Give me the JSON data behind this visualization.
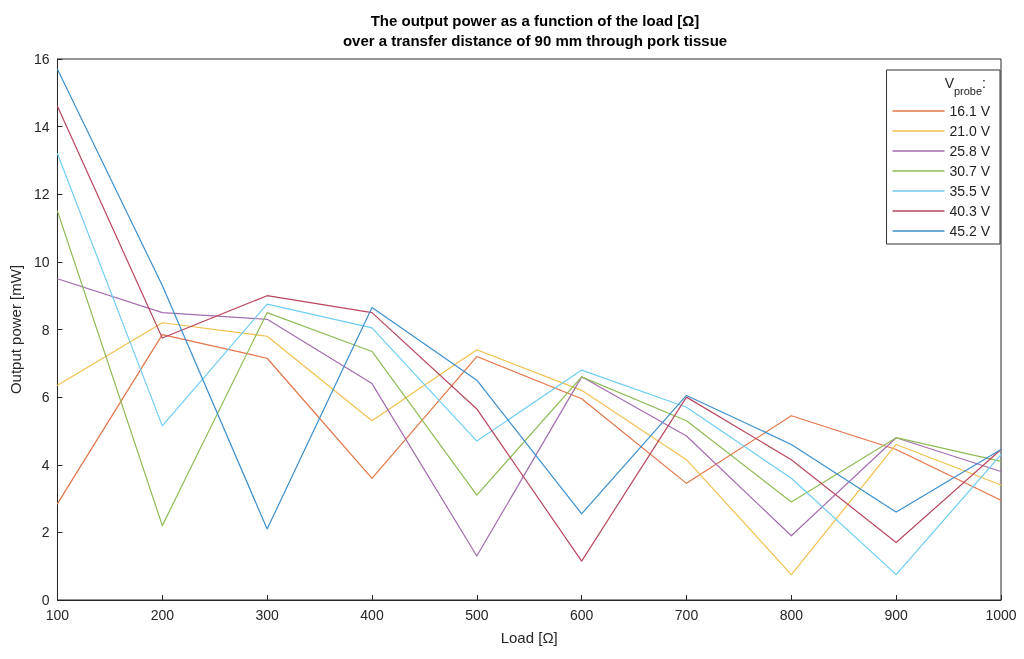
{
  "chart_data": {
    "type": "line",
    "title": "The output power as a function of the load [Ω]\nover a transfer distance of 90 mm through pork tissue",
    "xlabel": "Load [Ω]",
    "ylabel": "Output power [mW]",
    "legend_title": "V$_{probe}$:",
    "x": [
      100,
      200,
      300,
      400,
      500,
      600,
      700,
      800,
      900,
      1000
    ],
    "xlim": [
      100,
      1000
    ],
    "xticks": [
      100,
      200,
      300,
      400,
      500,
      600,
      700,
      800,
      900,
      1000
    ],
    "ylim": [
      0,
      16
    ],
    "yticks": [
      0,
      2,
      4,
      6,
      8,
      10,
      12,
      14,
      16
    ],
    "grid": false,
    "legend": "top right",
    "marker": "none",
    "line_style": "solid",
    "series": [
      {
        "name": "16.1 V",
        "color": "#e27448",
        "values": [
          2.85,
          7.85,
          7.15,
          3.6,
          7.2,
          5.95,
          3.45,
          5.45,
          4.45,
          2.95
        ]
      },
      {
        "name": "21.0 V",
        "color": "#f2c04e",
        "values": [
          6.35,
          8.2,
          7.8,
          5.3,
          7.4,
          6.2,
          4.15,
          0.75,
          4.6,
          3.4
        ]
      },
      {
        "name": "25.8 V",
        "color": "#a46cb0",
        "values": [
          9.5,
          8.5,
          8.3,
          6.4,
          1.3,
          6.6,
          4.85,
          1.9,
          4.8,
          3.8
        ]
      },
      {
        "name": "30.7 V",
        "color": "#8fbc55",
        "values": [
          11.5,
          2.2,
          8.5,
          7.35,
          3.1,
          6.6,
          5.3,
          2.9,
          4.8,
          4.1
        ]
      },
      {
        "name": "35.5 V",
        "color": "#6fcdf3",
        "values": [
          13.2,
          5.15,
          8.75,
          8.05,
          4.7,
          6.8,
          5.7,
          3.6,
          0.75,
          4.3
        ]
      },
      {
        "name": "40.3 V",
        "color": "#b8475d",
        "values": [
          14.6,
          7.75,
          9.0,
          8.5,
          5.65,
          1.15,
          6.0,
          4.15,
          1.7,
          4.45
        ]
      },
      {
        "name": "45.2 V",
        "color": "#3d8fcc",
        "values": [
          15.7,
          9.3,
          2.1,
          8.65,
          6.5,
          2.55,
          6.05,
          4.6,
          2.6,
          4.45
        ]
      }
    ]
  }
}
